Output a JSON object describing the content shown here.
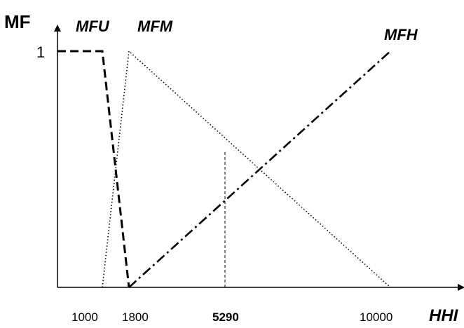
{
  "chart_data": {
    "type": "line",
    "xlabel": "HHI",
    "ylabel": "MF",
    "ylim": [
      0,
      1
    ],
    "y_ticks": [
      1
    ],
    "x_ticks": [
      {
        "value": 1000,
        "label": "1000",
        "bold": false
      },
      {
        "value": 1800,
        "label": "1800",
        "bold": false
      },
      {
        "value": 5290,
        "label": "5290",
        "bold": true
      },
      {
        "value": 10000,
        "label": "10000",
        "bold": false
      }
    ],
    "series": [
      {
        "name": "MFU",
        "style": "dashed",
        "x": [
          0,
          1000,
          1800
        ],
        "y": [
          1,
          1,
          0
        ]
      },
      {
        "name": "MFM",
        "style": "dotted",
        "x": [
          1000,
          1800,
          10000
        ],
        "y": [
          0,
          1,
          0
        ]
      },
      {
        "name": "MFH",
        "style": "dashdot",
        "x": [
          1800,
          10000
        ],
        "y": [
          0,
          1
        ]
      }
    ],
    "marker_line": {
      "x": 5290,
      "style": "dashed"
    }
  }
}
